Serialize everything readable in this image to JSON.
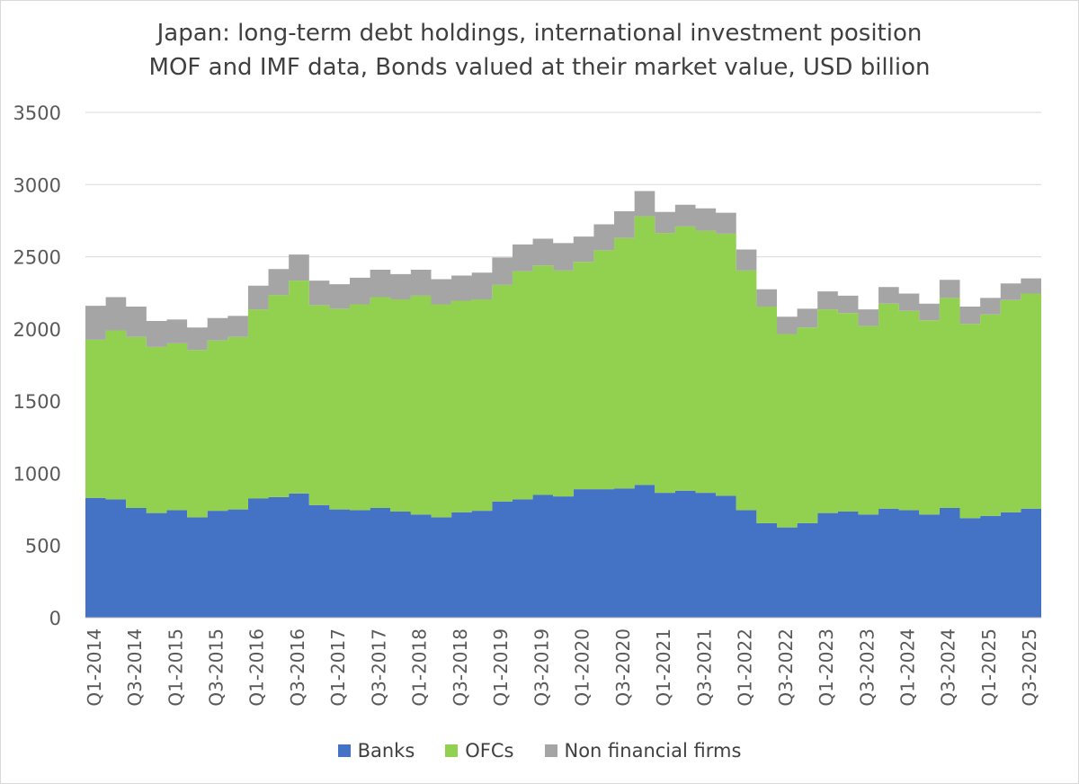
{
  "chart_data": {
    "type": "area",
    "stacked": true,
    "title": "Japan: long-term debt holdings, international investment position",
    "subtitle": "MOF and IMF data, Bonds valued at their market value, USD billion",
    "xlabel": "",
    "ylabel": "",
    "ylim": [
      0,
      3500
    ],
    "yticks": [
      0,
      500,
      1000,
      1500,
      2000,
      2500,
      3000,
      3500
    ],
    "grid": true,
    "legend_position": "bottom",
    "x": [
      "Q1-2014",
      "Q2-2014",
      "Q3-2014",
      "Q4-2014",
      "Q1-2015",
      "Q2-2015",
      "Q3-2015",
      "Q4-2015",
      "Q1-2016",
      "Q2-2016",
      "Q3-2016",
      "Q4-2016",
      "Q1-2017",
      "Q2-2017",
      "Q3-2017",
      "Q4-2017",
      "Q1-2018",
      "Q2-2018",
      "Q3-2018",
      "Q4-2018",
      "Q1-2019",
      "Q2-2019",
      "Q3-2019",
      "Q4-2019",
      "Q1-2020",
      "Q2-2020",
      "Q3-2020",
      "Q4-2020",
      "Q1-2021",
      "Q2-2021",
      "Q3-2021",
      "Q4-2021",
      "Q1-2022",
      "Q2-2022",
      "Q3-2022",
      "Q4-2022",
      "Q1-2023",
      "Q2-2023",
      "Q3-2023",
      "Q4-2023",
      "Q1-2024",
      "Q2-2024",
      "Q3-2024",
      "Q4-2024",
      "Q1-2025",
      "Q2-2025",
      "Q3-2025"
    ],
    "x_tick_labels": [
      "Q1-2014",
      "Q3-2014",
      "Q1-2015",
      "Q3-2015",
      "Q1-2016",
      "Q3-2016",
      "Q1-2017",
      "Q3-2017",
      "Q1-2018",
      "Q3-2018",
      "Q1-2019",
      "Q3-2019",
      "Q1-2020",
      "Q3-2020",
      "Q1-2021",
      "Q3-2021",
      "Q1-2022",
      "Q3-2022",
      "Q1-2023",
      "Q3-2023",
      "Q1-2024",
      "Q3-2024",
      "Q1-2025",
      "Q3-2025"
    ],
    "series": [
      {
        "name": "Banks",
        "color": "#4472c4",
        "values": [
          830,
          820,
          760,
          725,
          745,
          695,
          740,
          750,
          825,
          835,
          860,
          780,
          750,
          745,
          760,
          735,
          715,
          695,
          730,
          740,
          805,
          820,
          850,
          840,
          890,
          890,
          895,
          920,
          865,
          880,
          865,
          845,
          745,
          655,
          625,
          655,
          725,
          735,
          715,
          755,
          745,
          715,
          760,
          690,
          705,
          730,
          755
        ]
      },
      {
        "name": "OFCs",
        "color": "#92d050",
        "values": [
          1095,
          1170,
          1185,
          1150,
          1155,
          1160,
          1180,
          1195,
          1310,
          1400,
          1475,
          1385,
          1390,
          1425,
          1460,
          1470,
          1515,
          1475,
          1465,
          1465,
          1500,
          1580,
          1590,
          1565,
          1575,
          1655,
          1735,
          1860,
          1800,
          1830,
          1815,
          1815,
          1660,
          1500,
          1340,
          1355,
          1410,
          1375,
          1305,
          1420,
          1380,
          1345,
          1455,
          1345,
          1395,
          1470,
          1490
        ]
      },
      {
        "name": "Non financial firms",
        "color": "#a5a5a5",
        "values": [
          235,
          230,
          210,
          180,
          165,
          155,
          155,
          145,
          165,
          180,
          180,
          170,
          170,
          185,
          190,
          175,
          180,
          175,
          175,
          185,
          190,
          185,
          185,
          190,
          175,
          180,
          185,
          175,
          145,
          150,
          155,
          145,
          145,
          120,
          120,
          130,
          125,
          120,
          115,
          115,
          120,
          115,
          125,
          120,
          115,
          115,
          105
        ]
      }
    ]
  }
}
